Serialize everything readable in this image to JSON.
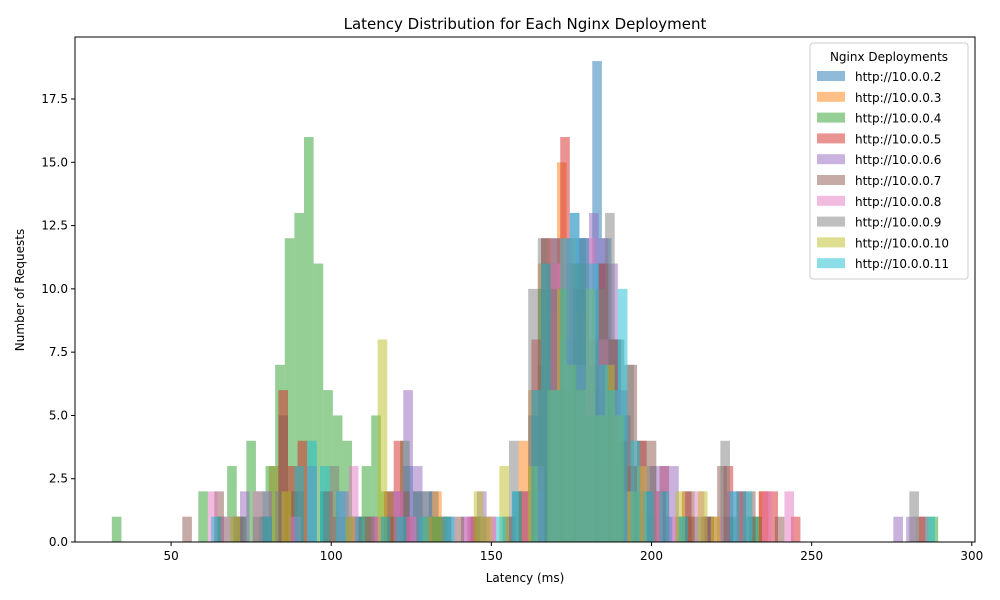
{
  "chart_data": {
    "type": "bar",
    "title": "Latency Distribution for Each Nginx Deployment",
    "xlabel": "Latency (ms)",
    "ylabel": "Number of Requests",
    "xlim": [
      20,
      301
    ],
    "ylim": [
      0,
      19.95
    ],
    "xticks": [
      50,
      100,
      150,
      200,
      250,
      300
    ],
    "yticks": [
      0.0,
      2.5,
      5.0,
      7.5,
      10.0,
      12.5,
      15.0,
      17.5
    ],
    "ytick_labels": [
      "0.0",
      "2.5",
      "5.0",
      "7.5",
      "10.0",
      "12.5",
      "15.0",
      "17.5"
    ],
    "grid": false,
    "bar_alpha": 0.5,
    "legend": {
      "title": "Nginx Deployments",
      "placement": "top-right"
    },
    "series": [
      {
        "name": "http://10.0.0.2",
        "color": "#1f77b4",
        "bin_width": 3.0,
        "bars": [
          [
            65,
            1
          ],
          [
            72,
            1
          ],
          [
            79,
            1
          ],
          [
            88,
            2
          ],
          [
            98,
            2
          ],
          [
            106,
            1
          ],
          [
            112,
            1
          ],
          [
            118,
            1
          ],
          [
            124,
            3
          ],
          [
            127,
            2
          ],
          [
            132,
            2
          ],
          [
            135,
            1
          ],
          [
            145,
            1
          ],
          [
            155,
            1
          ],
          [
            158,
            2
          ],
          [
            163,
            5
          ],
          [
            166,
            7
          ],
          [
            169,
            10
          ],
          [
            172,
            7
          ],
          [
            175,
            8
          ],
          [
            178,
            12
          ],
          [
            183,
            19
          ],
          [
            186,
            12
          ],
          [
            189,
            8
          ],
          [
            192,
            5
          ],
          [
            196,
            2
          ],
          [
            200,
            2
          ],
          [
            205,
            1
          ],
          [
            212,
            1
          ],
          [
            218,
            1
          ],
          [
            224,
            1
          ],
          [
            228,
            2
          ],
          [
            232,
            1
          ]
        ]
      },
      {
        "name": "http://10.0.0.3",
        "color": "#ff7f0e",
        "bin_width": 3.0,
        "bars": [
          [
            82,
            3
          ],
          [
            85,
            2
          ],
          [
            88,
            1
          ],
          [
            110,
            1
          ],
          [
            120,
            1
          ],
          [
            133,
            2
          ],
          [
            148,
            1
          ],
          [
            160,
            4
          ],
          [
            163,
            6
          ],
          [
            166,
            11
          ],
          [
            169,
            9
          ],
          [
            172,
            15
          ],
          [
            175,
            11
          ],
          [
            178,
            9
          ],
          [
            181,
            5
          ],
          [
            185,
            3
          ],
          [
            188,
            6
          ],
          [
            192,
            3
          ],
          [
            196,
            3
          ],
          [
            203,
            2
          ],
          [
            212,
            1
          ],
          [
            220,
            1
          ],
          [
            235,
            2
          ]
        ]
      },
      {
        "name": "http://10.0.0.4",
        "color": "#2ca02c",
        "bin_width": 3.0,
        "bars": [
          [
            33,
            1
          ],
          [
            60,
            2
          ],
          [
            66,
            1
          ],
          [
            69,
            3
          ],
          [
            72,
            1
          ],
          [
            75,
            4
          ],
          [
            78,
            2
          ],
          [
            81,
            3
          ],
          [
            84,
            7
          ],
          [
            87,
            12
          ],
          [
            90,
            13
          ],
          [
            93,
            16
          ],
          [
            96,
            11
          ],
          [
            99,
            6
          ],
          [
            102,
            5
          ],
          [
            105,
            4
          ],
          [
            108,
            1
          ],
          [
            111,
            3
          ],
          [
            114,
            5
          ],
          [
            117,
            2
          ],
          [
            120,
            2
          ],
          [
            123,
            4
          ],
          [
            127,
            2
          ],
          [
            130,
            2
          ],
          [
            133,
            1
          ],
          [
            136,
            1
          ],
          [
            160,
            2
          ],
          [
            163,
            2
          ],
          [
            166,
            10
          ],
          [
            169,
            11
          ],
          [
            172,
            10
          ],
          [
            175,
            6
          ],
          [
            178,
            10
          ],
          [
            181,
            6
          ],
          [
            184,
            6
          ],
          [
            187,
            5
          ],
          [
            190,
            3
          ],
          [
            193,
            1
          ],
          [
            196,
            1
          ],
          [
            200,
            1
          ],
          [
            210,
            1
          ],
          [
            225,
            1
          ],
          [
            233,
            1
          ],
          [
            288,
            1
          ]
        ]
      },
      {
        "name": "http://10.0.0.5",
        "color": "#d62728",
        "bin_width": 3.0,
        "bars": [
          [
            85,
            6
          ],
          [
            88,
            3
          ],
          [
            91,
            4
          ],
          [
            99,
            2
          ],
          [
            108,
            1
          ],
          [
            113,
            1
          ],
          [
            118,
            2
          ],
          [
            121,
            4
          ],
          [
            124,
            1
          ],
          [
            144,
            1
          ],
          [
            160,
            2
          ],
          [
            164,
            8
          ],
          [
            167,
            12
          ],
          [
            170,
            10
          ],
          [
            173,
            16
          ],
          [
            176,
            10
          ],
          [
            179,
            12
          ],
          [
            182,
            8
          ],
          [
            185,
            11
          ],
          [
            188,
            8
          ],
          [
            191,
            4
          ],
          [
            194,
            3
          ],
          [
            197,
            4
          ],
          [
            204,
            3
          ],
          [
            211,
            2
          ],
          [
            217,
            1
          ],
          [
            224,
            3
          ],
          [
            228,
            2
          ],
          [
            235,
            2
          ],
          [
            238,
            2
          ],
          [
            245,
            1
          ],
          [
            285,
            1
          ]
        ]
      },
      {
        "name": "http://10.0.0.6",
        "color": "#9467bd",
        "bin_width": 3.0,
        "bars": [
          [
            70,
            1
          ],
          [
            73,
            2
          ],
          [
            80,
            2
          ],
          [
            88,
            1
          ],
          [
            94,
            3
          ],
          [
            104,
            2
          ],
          [
            107,
            1
          ],
          [
            115,
            1
          ],
          [
            121,
            2
          ],
          [
            124,
            6
          ],
          [
            127,
            3
          ],
          [
            130,
            2
          ],
          [
            137,
            1
          ],
          [
            142,
            1
          ],
          [
            147,
            2
          ],
          [
            150,
            1
          ],
          [
            165,
            2
          ],
          [
            170,
            12
          ],
          [
            173,
            8
          ],
          [
            176,
            13
          ],
          [
            179,
            12
          ],
          [
            182,
            13
          ],
          [
            185,
            12
          ],
          [
            188,
            11
          ],
          [
            191,
            6
          ],
          [
            195,
            2
          ],
          [
            198,
            2
          ],
          [
            201,
            3
          ],
          [
            204,
            3
          ],
          [
            207,
            3
          ],
          [
            217,
            1
          ],
          [
            225,
            2
          ],
          [
            277,
            1
          ],
          [
            281,
            1
          ]
        ]
      },
      {
        "name": "http://10.0.0.7",
        "color": "#8c564b",
        "bin_width": 3.0,
        "bars": [
          [
            55,
            1
          ],
          [
            65,
            2
          ],
          [
            71,
            1
          ],
          [
            80,
            1
          ],
          [
            85,
            5
          ],
          [
            90,
            2
          ],
          [
            102,
            1
          ],
          [
            110,
            1
          ],
          [
            117,
            1
          ],
          [
            123,
            2
          ],
          [
            130,
            1
          ],
          [
            140,
            1
          ],
          [
            145,
            1
          ],
          [
            156,
            1
          ],
          [
            164,
            5
          ],
          [
            167,
            12
          ],
          [
            170,
            12
          ],
          [
            173,
            6
          ],
          [
            176,
            11
          ],
          [
            179,
            11
          ],
          [
            182,
            7
          ],
          [
            185,
            11
          ],
          [
            188,
            8
          ],
          [
            191,
            4
          ],
          [
            194,
            7
          ],
          [
            197,
            4
          ],
          [
            200,
            4
          ],
          [
            203,
            2
          ],
          [
            212,
            2
          ],
          [
            218,
            1
          ],
          [
            222,
            3
          ],
          [
            231,
            2
          ],
          [
            240,
            1
          ],
          [
            284,
            1
          ]
        ]
      },
      {
        "name": "http://10.0.0.8",
        "color": "#e377c2",
        "bin_width": 3.0,
        "bars": [
          [
            63,
            2
          ],
          [
            67,
            1
          ],
          [
            77,
            2
          ],
          [
            89,
            1
          ],
          [
            103,
            2
          ],
          [
            107,
            3
          ],
          [
            114,
            1
          ],
          [
            121,
            2
          ],
          [
            125,
            1
          ],
          [
            143,
            1
          ],
          [
            150,
            1
          ],
          [
            161,
            2
          ],
          [
            165,
            3
          ],
          [
            170,
            11
          ],
          [
            174,
            12
          ],
          [
            178,
            7
          ],
          [
            181,
            12
          ],
          [
            185,
            8
          ],
          [
            189,
            6
          ],
          [
            193,
            2
          ],
          [
            197,
            3
          ],
          [
            202,
            2
          ],
          [
            208,
            1
          ],
          [
            215,
            2
          ],
          [
            221,
            1
          ],
          [
            236,
            2
          ],
          [
            243,
            2
          ]
        ]
      },
      {
        "name": "http://10.0.0.9",
        "color": "#7f7f7f",
        "bin_width": 3.0,
        "bars": [
          [
            72,
            1
          ],
          [
            77,
            1
          ],
          [
            84,
            2
          ],
          [
            101,
            3
          ],
          [
            105,
            1
          ],
          [
            112,
            1
          ],
          [
            121,
            1
          ],
          [
            136,
            1
          ],
          [
            147,
            1
          ],
          [
            157,
            4
          ],
          [
            163,
            10
          ],
          [
            166,
            12
          ],
          [
            169,
            10
          ],
          [
            172,
            10
          ],
          [
            175,
            12
          ],
          [
            178,
            11
          ],
          [
            181,
            5
          ],
          [
            184,
            10
          ],
          [
            187,
            13
          ],
          [
            190,
            8
          ],
          [
            193,
            7
          ],
          [
            196,
            2
          ],
          [
            200,
            3
          ],
          [
            209,
            1
          ],
          [
            215,
            1
          ],
          [
            223,
            4
          ],
          [
            230,
            1
          ],
          [
            282,
            2
          ]
        ]
      },
      {
        "name": "http://10.0.0.10",
        "color": "#bcbd22",
        "bin_width": 3.0,
        "bars": [
          [
            70,
            1
          ],
          [
            86,
            2
          ],
          [
            106,
            1
          ],
          [
            116,
            8
          ],
          [
            130,
            1
          ],
          [
            146,
            2
          ],
          [
            149,
            1
          ],
          [
            154,
            3
          ],
          [
            163,
            3
          ],
          [
            169,
            6
          ],
          [
            172,
            10
          ],
          [
            175,
            7
          ],
          [
            178,
            6
          ],
          [
            181,
            10
          ],
          [
            184,
            5
          ],
          [
            187,
            7
          ],
          [
            190,
            5
          ],
          [
            194,
            2
          ],
          [
            197,
            3
          ],
          [
            209,
            2
          ],
          [
            216,
            2
          ],
          [
            220,
            1
          ]
        ]
      },
      {
        "name": "http://10.0.0.11",
        "color": "#17becf",
        "bin_width": 3.0,
        "bars": [
          [
            64,
            1
          ],
          [
            80,
            1
          ],
          [
            90,
            3
          ],
          [
            94,
            4
          ],
          [
            98,
            3
          ],
          [
            103,
            2
          ],
          [
            109,
            1
          ],
          [
            117,
            1
          ],
          [
            122,
            1
          ],
          [
            129,
            1
          ],
          [
            137,
            1
          ],
          [
            153,
            1
          ],
          [
            158,
            2
          ],
          [
            164,
            6
          ],
          [
            167,
            11
          ],
          [
            170,
            6
          ],
          [
            173,
            12
          ],
          [
            176,
            13
          ],
          [
            179,
            12
          ],
          [
            182,
            11
          ],
          [
            185,
            7
          ],
          [
            188,
            6
          ],
          [
            191,
            10
          ],
          [
            195,
            4
          ],
          [
            199,
            2
          ],
          [
            204,
            2
          ],
          [
            210,
            1
          ],
          [
            226,
            2
          ],
          [
            230,
            2
          ],
          [
            287,
            1
          ]
        ]
      }
    ]
  }
}
